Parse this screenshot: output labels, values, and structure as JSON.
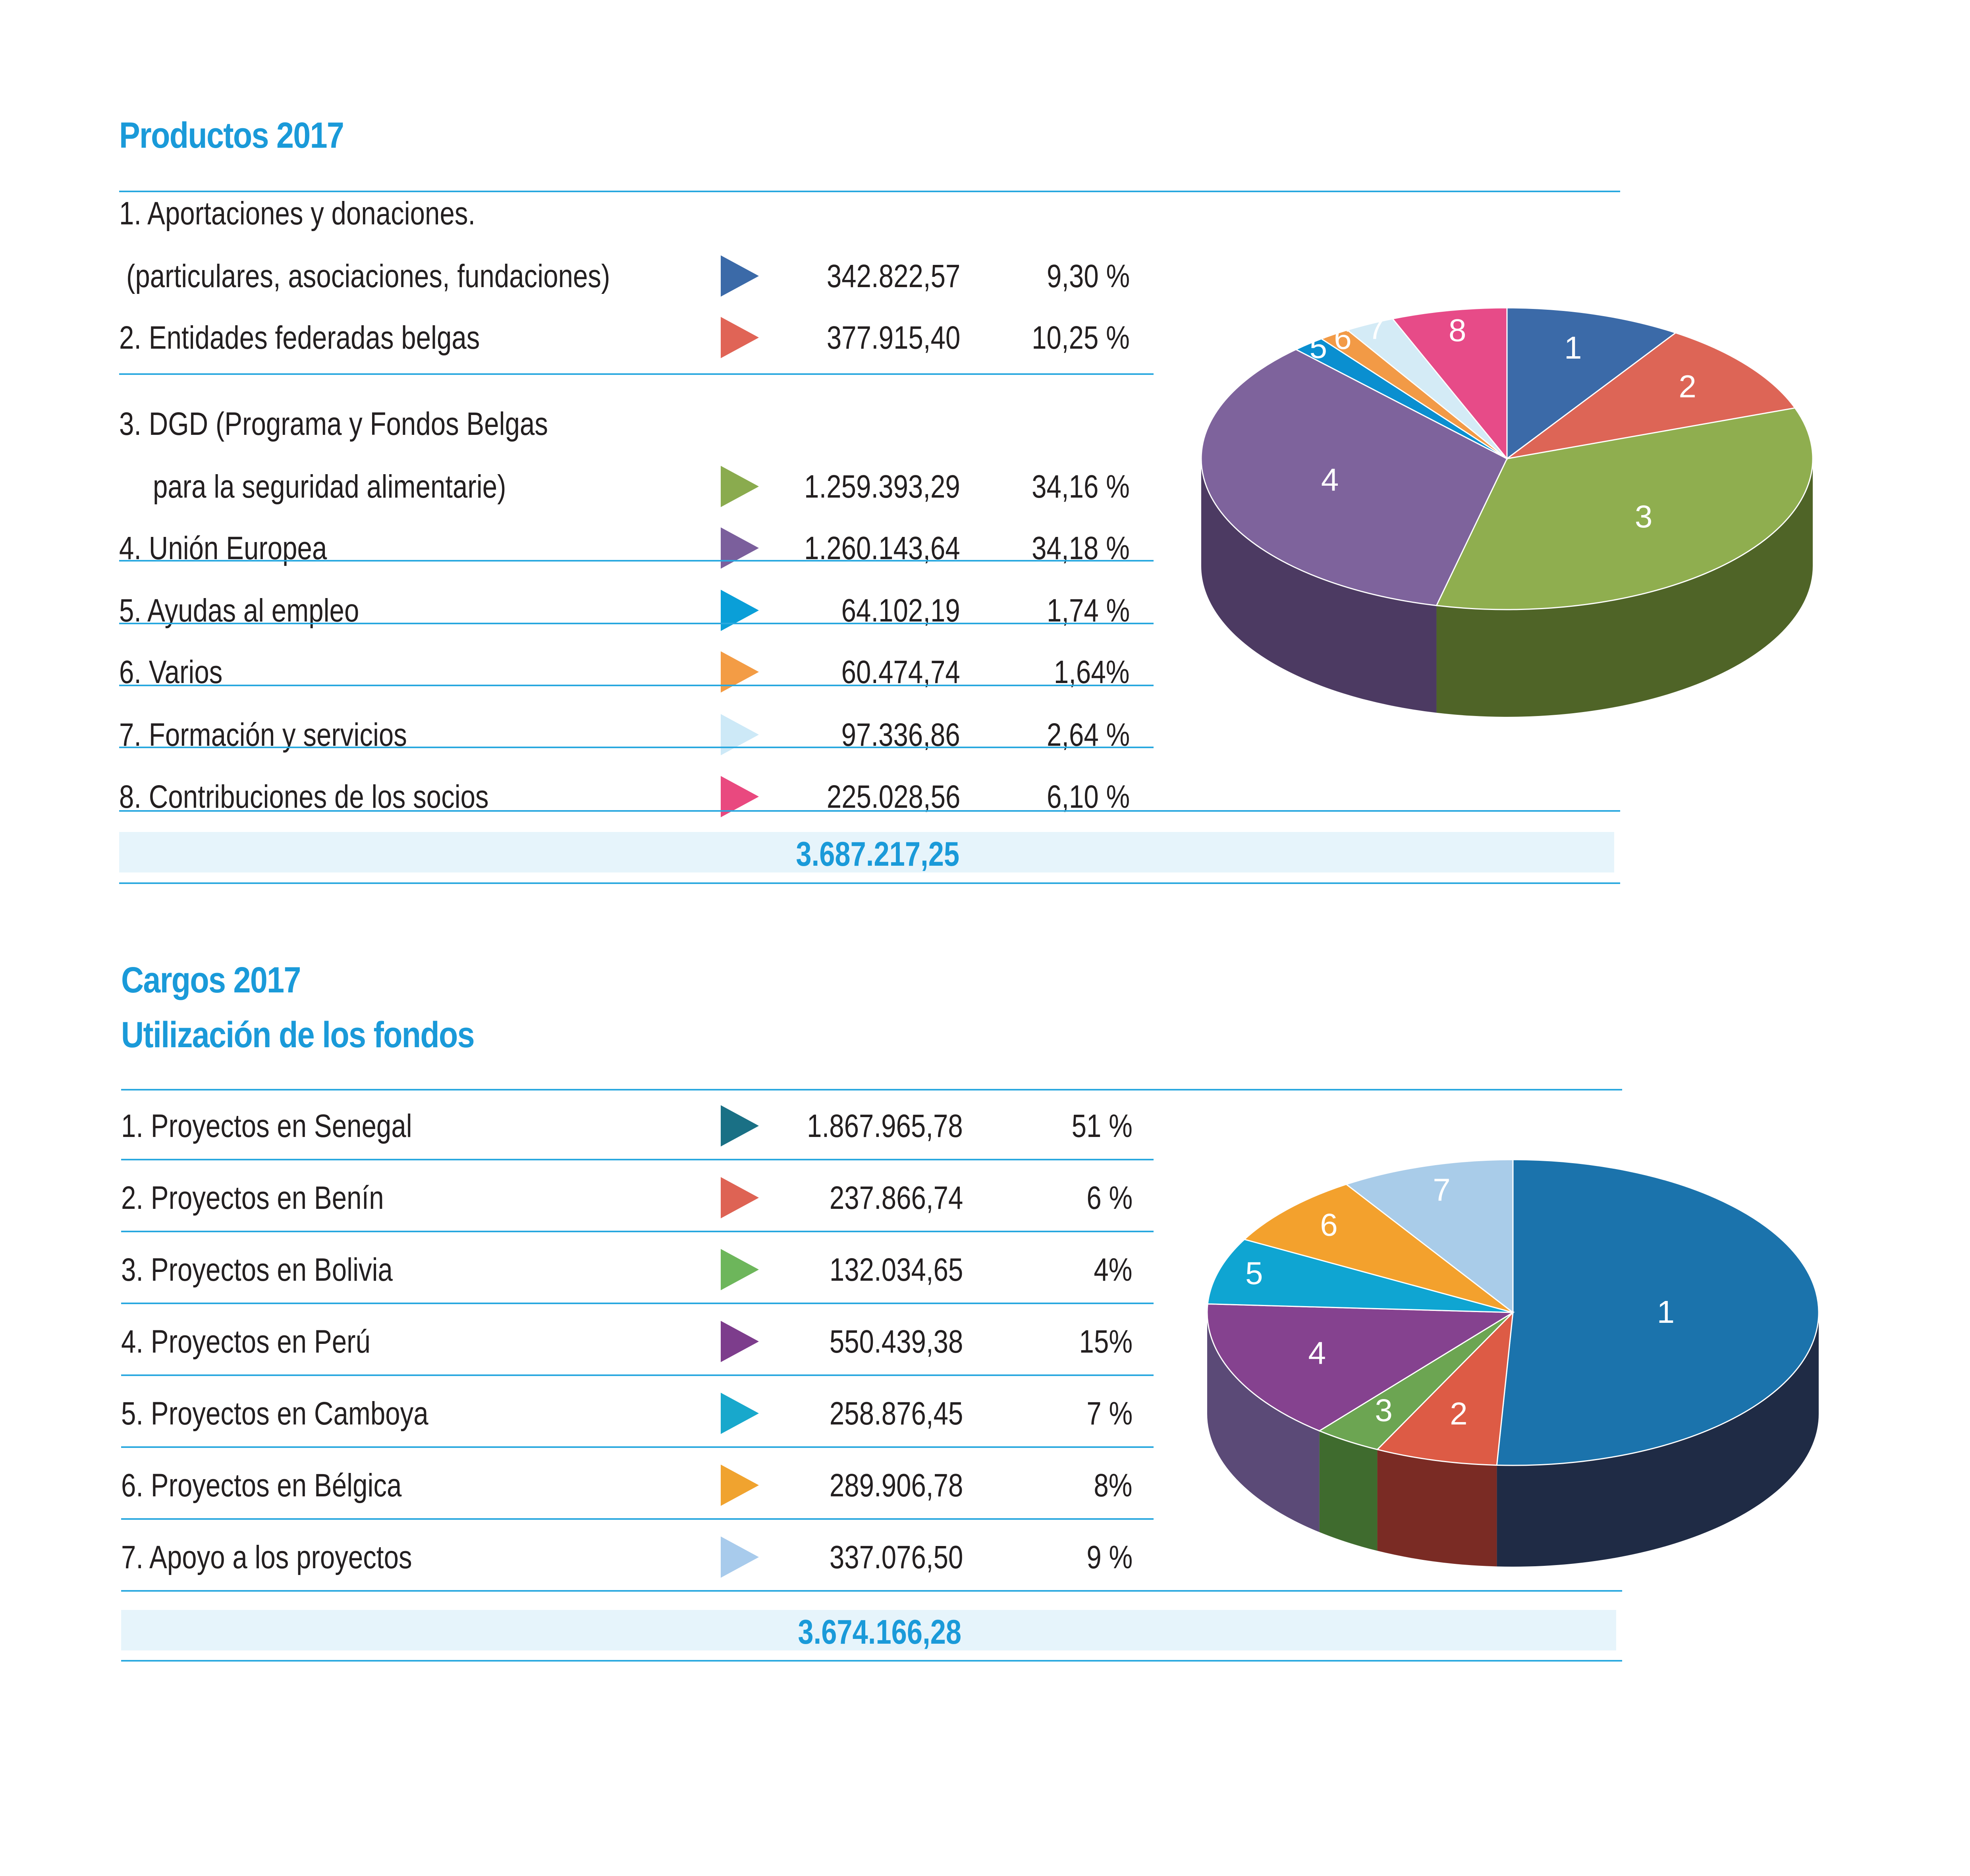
{
  "products": {
    "heading": "Productos 2017",
    "rows": [
      {
        "label_1": "1.  Aportaciones y donaciones.",
        "label_2": " (particulares, asociaciones, fundaciones)",
        "value": "342.822,57",
        "pct": "9,30 %",
        "color": "#3b6aa8"
      },
      {
        "label_1": "",
        "label_2": "2.  Entidades federadas belgas",
        "value": "377.915,40",
        "pct": "10,25 %",
        "color": "#e06456"
      },
      {
        "label_1": "3.  DGD (Programa y Fondos Belgas",
        "label_2": "para la seguridad alimentarie)",
        "value": "1.259.393,29",
        "pct": "34,16 %",
        "color": "#8aab4e"
      },
      {
        "label_1": "",
        "label_2": "4.  Unión Europea",
        "value": "1.260.143,64",
        "pct": "34,18 %",
        "color": "#7b5f9c"
      },
      {
        "label_1": "",
        "label_2": "5.  Ayudas al empleo",
        "value": "64.102,19",
        "pct": "1,74 %",
        "color": "#0a9fd8"
      },
      {
        "label_1": "",
        "label_2": "6.  Varios",
        "value": "60.474,74",
        "pct": "1,64%",
        "color": "#f39c45"
      },
      {
        "label_1": "",
        "label_2": "7.  Formación y servicios",
        "value": "97.336,86",
        "pct": "2,64 %",
        "color": "#cde9f7"
      },
      {
        "label_1": "",
        "label_2": "8.  Contribuciones de los socios",
        "value": "225.028,56",
        "pct": "6,10 %",
        "color": "#e9497f"
      }
    ],
    "total": "3.687.217,25"
  },
  "charges": {
    "heading_1": "Cargos 2017",
    "heading_2": "Utilización de los fondos",
    "rows": [
      {
        "label": "1. Proyectos en Senegal",
        "value": "1.867.965,78",
        "pct": "51 %",
        "color": "#1a7085"
      },
      {
        "label": "2. Proyectos en Benín",
        "value": "237.866,74",
        "pct": "6 %",
        "color": "#de6354"
      },
      {
        "label": "3. Proyectos en Bolivia",
        "value": "132.034,65",
        "pct": "4%",
        "color": "#6db65b"
      },
      {
        "label": "4. Proyectos en Perú",
        "value": "550.439,38",
        "pct": "15%",
        "color": "#7d3d8c"
      },
      {
        "label": "5. Proyectos en Camboya",
        "value": "258.876,45",
        "pct": "7 %",
        "color": "#18a8cc"
      },
      {
        "label": "6. Proyectos en Bélgica",
        "value": "289.906,78",
        "pct": "8%",
        "color": "#f0a32f"
      },
      {
        "label": "7. Apoyo a los proyectos",
        "value": "337.076,50",
        "pct": "9 %",
        "color": "#a8cbec"
      }
    ],
    "total": "3.674.166,28"
  },
  "chart_data": [
    {
      "type": "pie",
      "title": "Productos 2017",
      "categories": [
        "1",
        "2",
        "3",
        "4",
        "5",
        "6",
        "7",
        "8"
      ],
      "values": [
        342822.57,
        377915.4,
        1259393.29,
        1260143.64,
        64102.19,
        60474.74,
        97336.86,
        225028.56
      ],
      "percentages": [
        9.3,
        10.25,
        34.16,
        34.18,
        1.74,
        1.64,
        2.64,
        6.1
      ],
      "colors": [
        "#3b6aa8",
        "#dd6556",
        "#8fae4f",
        "#7e639c",
        "#0a8fd0",
        "#f29a46",
        "#d4ebf6",
        "#e74b88"
      ],
      "side_colors": [
        "#22406b",
        "#86392f",
        "#4f6427",
        "#4c3a62",
        "#075a84",
        "#8a5420",
        "#8ea5b0",
        "#882a50"
      ]
    },
    {
      "type": "pie",
      "title": "Cargos 2017 — Utilización de los fondos",
      "categories": [
        "1",
        "2",
        "3",
        "4",
        "5",
        "6",
        "7"
      ],
      "values": [
        1867965.78,
        237866.74,
        132034.65,
        550439.38,
        258876.45,
        289906.78,
        337076.5
      ],
      "percentages": [
        51,
        6,
        4,
        15,
        7,
        8,
        9
      ],
      "colors": [
        "#1b73ac",
        "#dd5b45",
        "#6ca552",
        "#85428f",
        "#0fa5d2",
        "#f3a12d",
        "#a9cce9"
      ],
      "side_colors": [
        "#1f2b45",
        "#7a2b24",
        "#3f6b2e",
        "#5b4a77",
        "#0b6e8c",
        "#96621a",
        "#6f8aa3"
      ]
    }
  ]
}
